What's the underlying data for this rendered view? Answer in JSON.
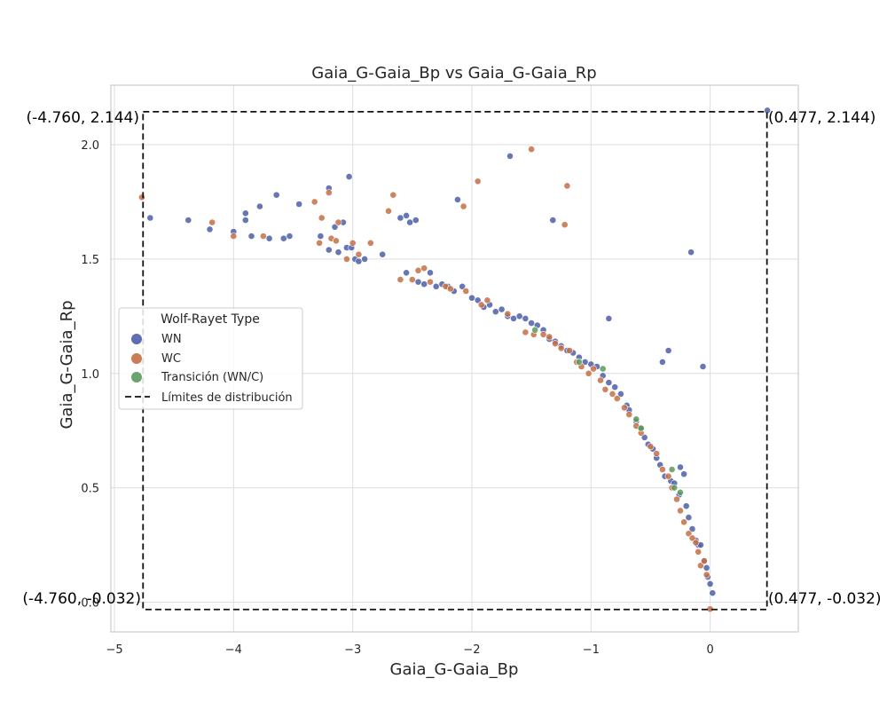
{
  "chart_data": {
    "type": "scatter",
    "title": "Gaia_G-Gaia_Bp vs Gaia_G-Gaia_Rp",
    "xlabel": "Gaia_G-Gaia_Bp",
    "ylabel": "Gaia_G-Gaia_Rp",
    "xlim": [
      -5.03,
      0.74
    ],
    "ylim": [
      -0.13,
      2.26
    ],
    "xticks": [
      -5,
      -4,
      -3,
      -2,
      -1,
      0
    ],
    "yticks": [
      0.0,
      0.5,
      1.0,
      1.5,
      2.0
    ],
    "xtick_labels": [
      "−5",
      "−4",
      "−3",
      "−2",
      "−1",
      "0"
    ],
    "ytick_labels": [
      "0.0",
      "0.5",
      "1.0",
      "1.5",
      "2.0"
    ],
    "grid": true,
    "legend": {
      "title": "Wolf-Rayet Type",
      "placement": "center-left",
      "entries": [
        "WN",
        "WC",
        "Transición (WN/C)",
        "Límites de distribución"
      ]
    },
    "colors": {
      "WN": "#4c5ea8",
      "WC": "#c46e44",
      "Transición (WN/C)": "#5a9a5a",
      "bounds": "#000000"
    },
    "bounds": {
      "xmin": -4.76,
      "xmax": 0.477,
      "ymin": -0.032,
      "ymax": 2.144
    },
    "corner_labels": {
      "top_left": "(-4.760, 2.144)",
      "top_right": "(0.477, 2.144)",
      "bottom_left": "(-4.760, -0.032)",
      "bottom_right": "(0.477, -0.032)"
    },
    "series": [
      {
        "name": "WN",
        "points": [
          [
            -4.7,
            1.68
          ],
          [
            -4.38,
            1.67
          ],
          [
            -4.2,
            1.63
          ],
          [
            -4.0,
            1.62
          ],
          [
            -3.9,
            1.7
          ],
          [
            -3.9,
            1.67
          ],
          [
            -3.85,
            1.6
          ],
          [
            -3.78,
            1.73
          ],
          [
            -3.7,
            1.59
          ],
          [
            -3.64,
            1.78
          ],
          [
            -3.58,
            1.59
          ],
          [
            -3.53,
            1.6
          ],
          [
            -3.45,
            1.74
          ],
          [
            -3.27,
            1.6
          ],
          [
            -3.2,
            1.81
          ],
          [
            -3.2,
            1.54
          ],
          [
            -3.15,
            1.64
          ],
          [
            -3.12,
            1.53
          ],
          [
            -3.08,
            1.66
          ],
          [
            -3.05,
            1.55
          ],
          [
            -3.03,
            1.86
          ],
          [
            -3.01,
            1.55
          ],
          [
            -2.98,
            1.5
          ],
          [
            -2.95,
            1.49
          ],
          [
            -2.9,
            1.5
          ],
          [
            -2.75,
            1.52
          ],
          [
            -2.6,
            1.68
          ],
          [
            -2.55,
            1.69
          ],
          [
            -2.52,
            1.66
          ],
          [
            -2.47,
            1.67
          ],
          [
            -2.55,
            1.44
          ],
          [
            -2.45,
            1.4
          ],
          [
            -2.4,
            1.39
          ],
          [
            -2.35,
            1.44
          ],
          [
            -2.3,
            1.38
          ],
          [
            -2.25,
            1.39
          ],
          [
            -2.2,
            1.38
          ],
          [
            -2.15,
            1.36
          ],
          [
            -2.12,
            1.76
          ],
          [
            -2.08,
            1.38
          ],
          [
            -2.0,
            1.33
          ],
          [
            -1.95,
            1.32
          ],
          [
            -1.9,
            1.29
          ],
          [
            -1.85,
            1.3
          ],
          [
            -1.8,
            1.27
          ],
          [
            -1.75,
            1.28
          ],
          [
            -1.7,
            1.25
          ],
          [
            -1.68,
            1.95
          ],
          [
            -1.65,
            1.24
          ],
          [
            -1.6,
            1.25
          ],
          [
            -1.55,
            1.24
          ],
          [
            -1.5,
            1.22
          ],
          [
            -1.45,
            1.21
          ],
          [
            -1.4,
            1.19
          ],
          [
            -1.35,
            1.15
          ],
          [
            -1.32,
            1.67
          ],
          [
            -1.3,
            1.14
          ],
          [
            -1.25,
            1.12
          ],
          [
            -1.2,
            1.1
          ],
          [
            -1.15,
            1.09
          ],
          [
            -1.1,
            1.07
          ],
          [
            -1.05,
            1.05
          ],
          [
            -1.0,
            1.04
          ],
          [
            -0.95,
            1.03
          ],
          [
            -0.9,
            0.99
          ],
          [
            -0.85,
            1.24
          ],
          [
            -0.85,
            0.96
          ],
          [
            -0.8,
            0.94
          ],
          [
            -0.75,
            0.91
          ],
          [
            -0.7,
            0.86
          ],
          [
            -0.68,
            0.84
          ],
          [
            -0.62,
            0.79
          ],
          [
            -0.58,
            0.76
          ],
          [
            -0.55,
            0.72
          ],
          [
            -0.52,
            0.69
          ],
          [
            -0.48,
            0.67
          ],
          [
            -0.45,
            0.63
          ],
          [
            -0.42,
            0.6
          ],
          [
            -0.4,
            1.05
          ],
          [
            -0.38,
            0.55
          ],
          [
            -0.35,
            1.1
          ],
          [
            -0.33,
            0.53
          ],
          [
            -0.3,
            0.52
          ],
          [
            -0.26,
            0.47
          ],
          [
            -0.25,
            0.59
          ],
          [
            -0.22,
            0.56
          ],
          [
            -0.2,
            0.42
          ],
          [
            -0.18,
            0.37
          ],
          [
            -0.16,
            1.53
          ],
          [
            -0.15,
            0.32
          ],
          [
            -0.12,
            0.27
          ],
          [
            -0.1,
            0.25
          ],
          [
            -0.08,
            0.25
          ],
          [
            -0.06,
            1.03
          ],
          [
            -0.05,
            0.18
          ],
          [
            -0.03,
            0.15
          ],
          [
            -0.02,
            0.11
          ],
          [
            0.0,
            0.08
          ],
          [
            0.02,
            0.04
          ],
          [
            0.48,
            2.15
          ]
        ]
      },
      {
        "name": "WC",
        "points": [
          [
            -4.77,
            1.77
          ],
          [
            -4.18,
            1.66
          ],
          [
            -4.0,
            1.6
          ],
          [
            -3.75,
            1.6
          ],
          [
            -3.32,
            1.75
          ],
          [
            -3.28,
            1.57
          ],
          [
            -3.26,
            1.68
          ],
          [
            -3.2,
            1.79
          ],
          [
            -3.18,
            1.59
          ],
          [
            -3.14,
            1.58
          ],
          [
            -3.12,
            1.66
          ],
          [
            -3.05,
            1.5
          ],
          [
            -3.0,
            1.57
          ],
          [
            -2.95,
            1.52
          ],
          [
            -2.85,
            1.57
          ],
          [
            -2.7,
            1.71
          ],
          [
            -2.66,
            1.78
          ],
          [
            -2.6,
            1.41
          ],
          [
            -2.5,
            1.41
          ],
          [
            -2.45,
            1.45
          ],
          [
            -2.4,
            1.46
          ],
          [
            -2.35,
            1.4
          ],
          [
            -2.22,
            1.38
          ],
          [
            -2.18,
            1.37
          ],
          [
            -2.07,
            1.73
          ],
          [
            -2.05,
            1.36
          ],
          [
            -1.95,
            1.84
          ],
          [
            -1.92,
            1.3
          ],
          [
            -1.87,
            1.32
          ],
          [
            -1.7,
            1.26
          ],
          [
            -1.55,
            1.18
          ],
          [
            -1.5,
            1.98
          ],
          [
            -1.48,
            1.17
          ],
          [
            -1.4,
            1.17
          ],
          [
            -1.35,
            1.16
          ],
          [
            -1.3,
            1.13
          ],
          [
            -1.25,
            1.11
          ],
          [
            -1.22,
            1.65
          ],
          [
            -1.2,
            1.82
          ],
          [
            -1.18,
            1.1
          ],
          [
            -1.12,
            1.05
          ],
          [
            -1.08,
            1.03
          ],
          [
            -1.02,
            1.0
          ],
          [
            -0.98,
            1.02
          ],
          [
            -0.92,
            0.97
          ],
          [
            -0.88,
            0.93
          ],
          [
            -0.82,
            0.91
          ],
          [
            -0.78,
            0.89
          ],
          [
            -0.72,
            0.85
          ],
          [
            -0.68,
            0.82
          ],
          [
            -0.62,
            0.77
          ],
          [
            -0.58,
            0.74
          ],
          [
            -0.5,
            0.68
          ],
          [
            -0.45,
            0.65
          ],
          [
            -0.4,
            0.58
          ],
          [
            -0.35,
            0.55
          ],
          [
            -0.32,
            0.5
          ],
          [
            -0.28,
            0.45
          ],
          [
            -0.25,
            0.4
          ],
          [
            -0.22,
            0.35
          ],
          [
            -0.18,
            0.3
          ],
          [
            -0.15,
            0.28
          ],
          [
            -0.12,
            0.26
          ],
          [
            -0.1,
            0.22
          ],
          [
            -0.08,
            0.16
          ],
          [
            -0.05,
            0.18
          ],
          [
            -0.03,
            0.12
          ],
          [
            0.0,
            -0.03
          ]
        ]
      },
      {
        "name": "Transición (WN/C)",
        "points": [
          [
            -1.47,
            1.19
          ],
          [
            -1.1,
            1.05
          ],
          [
            -0.9,
            1.02
          ],
          [
            -0.62,
            0.8
          ],
          [
            -0.58,
            0.76
          ],
          [
            -0.32,
            0.58
          ],
          [
            -0.3,
            0.5
          ],
          [
            -0.25,
            0.48
          ]
        ]
      }
    ]
  }
}
